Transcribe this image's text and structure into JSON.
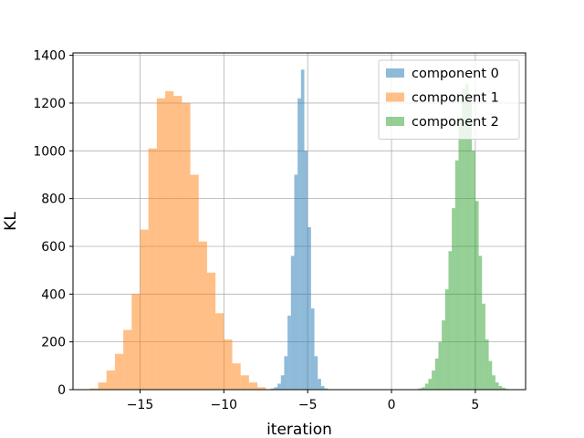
{
  "chart_data": {
    "type": "bar",
    "title": "",
    "xlabel": "iteration",
    "ylabel": "KL",
    "xlim": [
      -19.0,
      8.0
    ],
    "ylim": [
      0,
      1410
    ],
    "xticks": [
      -15,
      -10,
      -5,
      0,
      5
    ],
    "xtick_labels": [
      "−15",
      "−10",
      "−5",
      "0",
      "5"
    ],
    "yticks": [
      0,
      200,
      400,
      600,
      800,
      1000,
      1200,
      1400
    ],
    "ytick_labels": [
      "0",
      "200",
      "400",
      "600",
      "800",
      "1000",
      "1200",
      "1400"
    ],
    "grid": true,
    "legend_position": "top-right",
    "series": [
      {
        "name": "component 0",
        "color": "#1f77b4",
        "opacity": 0.5,
        "bin_edges": [
          -7.2,
          -7.0,
          -6.8,
          -6.6,
          -6.4,
          -6.2,
          -6.0,
          -5.8,
          -5.6,
          -5.4,
          -5.2,
          -5.0,
          -4.8,
          -4.6,
          -4.4,
          -4.2,
          -4.0,
          -3.8
        ],
        "counts": [
          5,
          10,
          25,
          60,
          140,
          310,
          560,
          900,
          1220,
          1340,
          1000,
          680,
          340,
          140,
          45,
          15,
          5
        ]
      },
      {
        "name": "component 1",
        "color": "#ff7f0e",
        "opacity": 0.5,
        "bin_edges": [
          -18.0,
          -17.5,
          -17.0,
          -16.5,
          -16.0,
          -15.5,
          -15.0,
          -14.5,
          -14.0,
          -13.5,
          -13.0,
          -12.5,
          -12.0,
          -11.5,
          -11.0,
          -10.5,
          -10.0,
          -9.5,
          -9.0,
          -8.5,
          -8.0,
          -7.5
        ],
        "counts": [
          5,
          30,
          80,
          150,
          250,
          400,
          670,
          1010,
          1220,
          1250,
          1230,
          1200,
          900,
          620,
          490,
          320,
          210,
          110,
          60,
          30,
          10
        ]
      },
      {
        "name": "component 2",
        "color": "#2ca02c",
        "opacity": 0.5,
        "bin_edges": [
          1.6,
          1.8,
          2.0,
          2.2,
          2.4,
          2.6,
          2.8,
          3.0,
          3.2,
          3.4,
          3.6,
          3.8,
          4.0,
          4.2,
          4.4,
          4.6,
          4.8,
          5.0,
          5.2,
          5.4,
          5.6,
          5.8,
          6.0,
          6.2,
          6.4,
          6.6,
          6.8,
          7.0
        ],
        "counts": [
          5,
          10,
          25,
          45,
          80,
          130,
          200,
          290,
          420,
          580,
          760,
          960,
          1130,
          1260,
          1280,
          1200,
          1000,
          790,
          560,
          360,
          210,
          120,
          60,
          30,
          15,
          8,
          3
        ]
      }
    ]
  }
}
